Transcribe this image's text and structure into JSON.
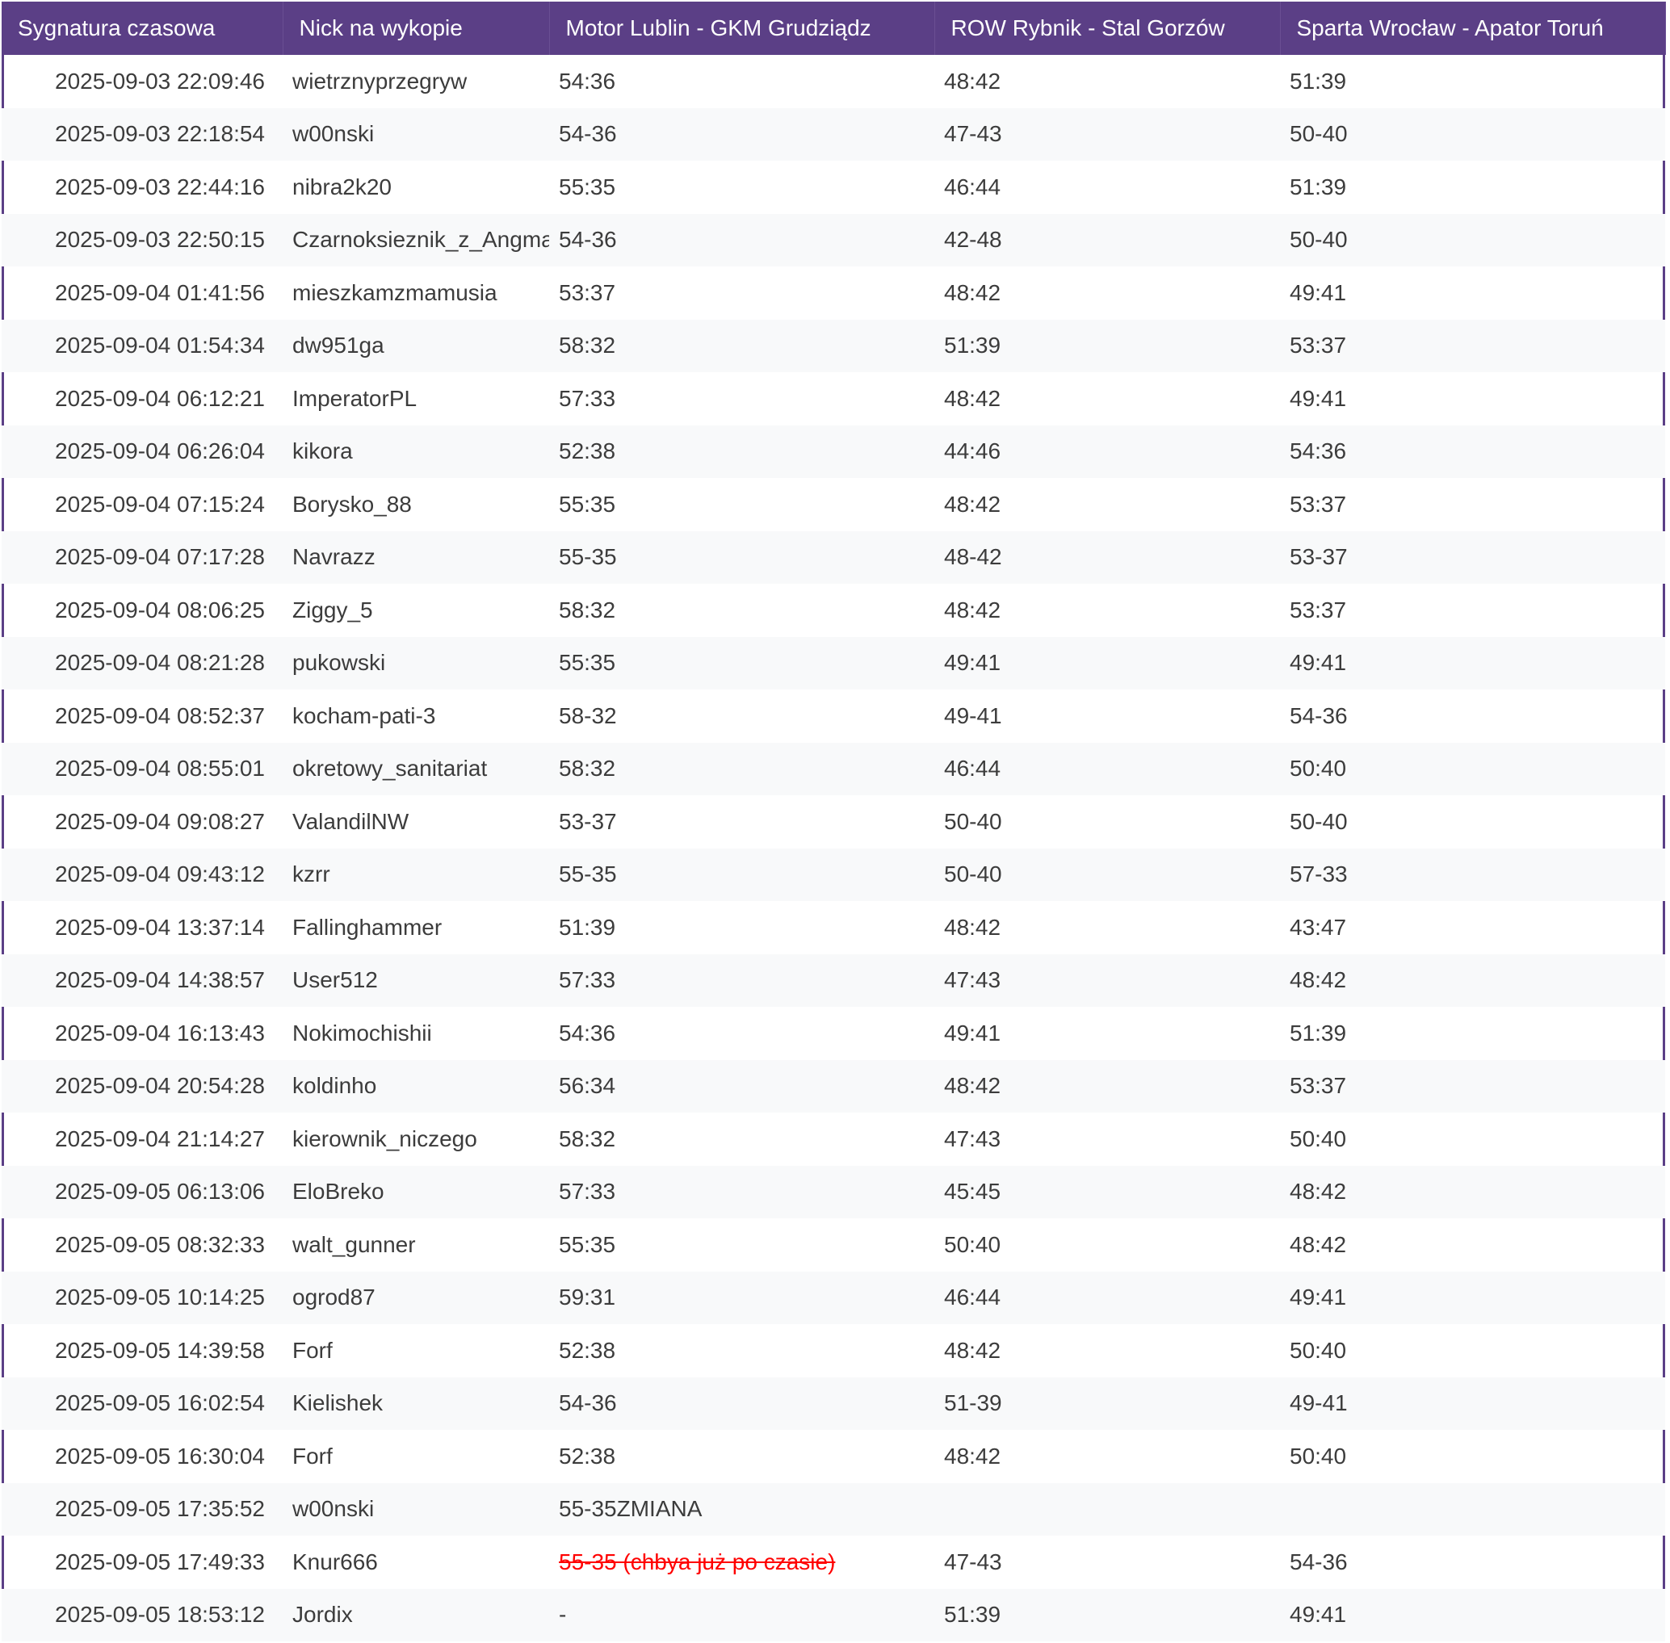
{
  "headers": [
    "Sygnatura czasowa",
    "Nick na wykopie",
    "Motor Lublin - GKM Grudziądz",
    "ROW Rybnik - Stal Gorzów",
    "Sparta Wrocław - Apator Toruń"
  ],
  "colors": {
    "header_bg": "#5b3f86",
    "header_text": "#ffffff",
    "strike_text": "#ff0000"
  },
  "rows": [
    {
      "ts": "2025-09-03 22:09:46",
      "nick": "wietrznyprzegryw",
      "m1": "54:36",
      "m2": "48:42",
      "m3": "51:39"
    },
    {
      "ts": "2025-09-03 22:18:54",
      "nick": "w00nski",
      "m1": "54-36",
      "m2": "47-43",
      "m3": "50-40"
    },
    {
      "ts": "2025-09-03 22:44:16",
      "nick": "nibra2k20",
      "m1": "55:35",
      "m2": "46:44",
      "m3": "51:39"
    },
    {
      "ts": "2025-09-03 22:50:15",
      "nick": "Czarnoksieznik_z_Angmaru",
      "m1": "54-36",
      "m2": "42-48",
      "m3": "50-40"
    },
    {
      "ts": "2025-09-04 01:41:56",
      "nick": "mieszkamzmamusia",
      "m1": "53:37",
      "m2": "48:42",
      "m3": "49:41"
    },
    {
      "ts": "2025-09-04 01:54:34",
      "nick": "dw951ga",
      "m1": "58:32",
      "m2": "51:39",
      "m3": "53:37"
    },
    {
      "ts": "2025-09-04 06:12:21",
      "nick": "ImperatorPL",
      "m1": "57:33",
      "m2": "48:42",
      "m3": "49:41"
    },
    {
      "ts": "2025-09-04 06:26:04",
      "nick": "kikora",
      "m1": "52:38",
      "m2": "44:46",
      "m3": "54:36"
    },
    {
      "ts": "2025-09-04 07:15:24",
      "nick": "Borysko_88",
      "m1": "55:35",
      "m2": "48:42",
      "m3": "53:37"
    },
    {
      "ts": "2025-09-04 07:17:28",
      "nick": "Navrazz",
      "m1": "55-35",
      "m2": "48-42",
      "m3": "53-37"
    },
    {
      "ts": "2025-09-04 08:06:25",
      "nick": "Ziggy_5",
      "m1": "58:32",
      "m2": "48:42",
      "m3": "53:37"
    },
    {
      "ts": "2025-09-04 08:21:28",
      "nick": "pukowski",
      "m1": "55:35",
      "m2": "49:41",
      "m3": "49:41"
    },
    {
      "ts": "2025-09-04 08:52:37",
      "nick": "kocham-pati-3",
      "m1": "58-32",
      "m2": "49-41",
      "m3": "54-36"
    },
    {
      "ts": "2025-09-04 08:55:01",
      "nick": "okretowy_sanitariat",
      "m1": "58:32",
      "m2": "46:44",
      "m3": "50:40"
    },
    {
      "ts": "2025-09-04 09:08:27",
      "nick": "ValandilNW",
      "m1": "53-37",
      "m2": "50-40",
      "m3": "50-40"
    },
    {
      "ts": "2025-09-04 09:43:12",
      "nick": "kzrr",
      "m1": "55-35",
      "m2": "50-40",
      "m3": "57-33"
    },
    {
      "ts": "2025-09-04 13:37:14",
      "nick": "Fallinghammer",
      "m1": "51:39",
      "m2": "48:42",
      "m3": "43:47"
    },
    {
      "ts": "2025-09-04 14:38:57",
      "nick": "User512",
      "m1": "57:33",
      "m2": "47:43",
      "m3": "48:42"
    },
    {
      "ts": "2025-09-04 16:13:43",
      "nick": "Nokimochishii",
      "m1": "54:36",
      "m2": "49:41",
      "m3": "51:39"
    },
    {
      "ts": "2025-09-04 20:54:28",
      "nick": "koldinho",
      "m1": "56:34",
      "m2": "48:42",
      "m3": "53:37"
    },
    {
      "ts": "2025-09-04 21:14:27",
      "nick": "kierownik_niczego",
      "m1": "58:32",
      "m2": "47:43",
      "m3": "50:40"
    },
    {
      "ts": "2025-09-05 06:13:06",
      "nick": "EloBreko",
      "m1": "57:33",
      "m2": "45:45",
      "m3": "48:42"
    },
    {
      "ts": "2025-09-05 08:32:33",
      "nick": "walt_gunner",
      "m1": "55:35",
      "m2": "50:40",
      "m3": "48:42"
    },
    {
      "ts": "2025-09-05 10:14:25",
      "nick": "ogrod87",
      "m1": "59:31",
      "m2": "46:44",
      "m3": "49:41"
    },
    {
      "ts": "2025-09-05 14:39:58",
      "nick": "Forf",
      "m1": "52:38",
      "m2": "48:42",
      "m3": "50:40"
    },
    {
      "ts": "2025-09-05 16:02:54",
      "nick": "Kielishek",
      "m1": "54-36",
      "m2": "51-39",
      "m3": "49-41"
    },
    {
      "ts": "2025-09-05 16:30:04",
      "nick": "Forf",
      "m1": "52:38",
      "m2": "48:42",
      "m3": "50:40"
    },
    {
      "ts": "2025-09-05 17:35:52",
      "nick": "w00nski",
      "m1": "55-35ZMIANA",
      "m2": "",
      "m3": ""
    },
    {
      "ts": "2025-09-05 17:49:33",
      "nick": "Knur666",
      "m1": "55-35 (chbya już po czasie)",
      "m1_strike": true,
      "m2": "47-43",
      "m3": "54-36"
    },
    {
      "ts": "2025-09-05 18:53:12",
      "nick": "Jordix",
      "m1": "-",
      "m2": "51:39",
      "m3": "49:41"
    }
  ]
}
